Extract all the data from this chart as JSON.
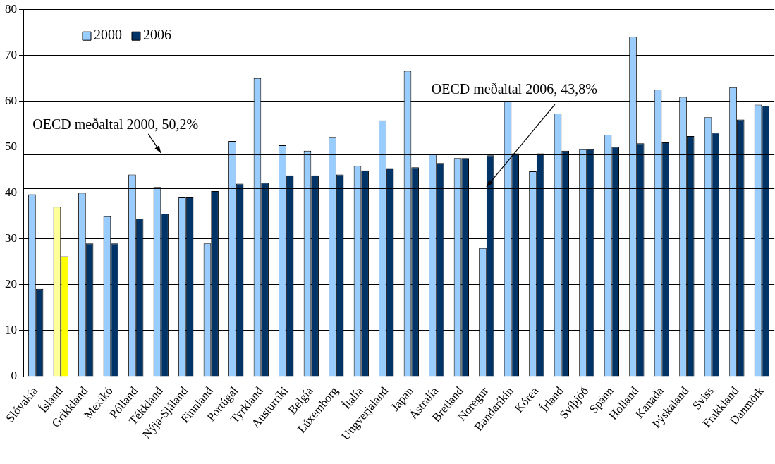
{
  "chart_data": {
    "type": "bar",
    "categories": [
      "Slóvakía",
      "Ísland",
      "Grikkland",
      "Mexíkó",
      "Pólland",
      "Tékkland",
      "Nýja-Sjáland",
      "Finnland",
      "Portúgal",
      "Tyrkland",
      "Austurríki",
      "Belgía",
      "Lúxemborg",
      "Ítalía",
      "Ungverjaland",
      "Japan",
      "Ástralía",
      "Bretland",
      "Noregur",
      "Bandaríkin",
      "Kórea",
      "Írland",
      "Svíþjóð",
      "Spánn",
      "Holland",
      "Kanada",
      "Þýskaland",
      "Sviss",
      "Frakkland",
      "Danmörk"
    ],
    "series": [
      {
        "name": "2000",
        "color": "#99ccff",
        "colors": [
          "#99ccff",
          "#ffff99",
          "#99ccff",
          "#99ccff",
          "#99ccff",
          "#99ccff",
          "#99ccff",
          "#99ccff",
          "#99ccff",
          "#99ccff",
          "#99ccff",
          "#99ccff",
          "#99ccff",
          "#99ccff",
          "#99ccff",
          "#99ccff",
          "#99ccff",
          "#99ccff",
          "#99ccff",
          "#99ccff",
          "#99ccff",
          "#99ccff",
          "#99ccff",
          "#99ccff",
          "#99ccff",
          "#99ccff",
          "#99ccff",
          "#99ccff",
          "#99ccff",
          "#99ccff"
        ],
        "values": [
          39.7,
          37.0,
          40.0,
          34.9,
          44.0,
          41.3,
          39.0,
          29.0,
          51.3,
          65.0,
          50.4,
          49.2,
          52.2,
          45.9,
          55.8,
          66.6,
          48.4,
          47.6,
          28.0,
          60.0,
          44.7,
          57.3,
          49.5,
          52.7,
          74.0,
          62.5,
          60.9,
          56.5,
          63.0,
          59.2
        ]
      },
      {
        "name": "2006",
        "color": "#003366",
        "colors": [
          "#003366",
          "#ffff00",
          "#003366",
          "#003366",
          "#003366",
          "#003366",
          "#003366",
          "#003366",
          "#003366",
          "#003366",
          "#003366",
          "#003366",
          "#003366",
          "#003366",
          "#003366",
          "#003366",
          "#003366",
          "#003366",
          "#003366",
          "#003366",
          "#003366",
          "#003366",
          "#003366",
          "#003366",
          "#003366",
          "#003366",
          "#003366",
          "#003366",
          "#003366",
          "#003366"
        ],
        "values": [
          19.1,
          26.2,
          29.0,
          29.0,
          34.4,
          35.5,
          39.0,
          40.4,
          42.0,
          42.2,
          43.8,
          43.8,
          44.0,
          44.9,
          45.4,
          45.6,
          46.5,
          47.6,
          48.2,
          48.6,
          48.6,
          49.2,
          49.5,
          50.0,
          50.8,
          51.0,
          52.4,
          53.1,
          56.0,
          59.0
        ]
      }
    ],
    "ylim": [
      0,
      80
    ],
    "yticks": [
      0,
      10,
      20,
      30,
      40,
      50,
      60,
      70,
      80
    ],
    "grid": "y",
    "legend": "top left",
    "ref_lines": [
      {
        "axis": "y",
        "value": 48.4,
        "color": "#000000"
      },
      {
        "axis": "y",
        "value": 41.0,
        "color": "#000000"
      }
    ],
    "annotations": [
      {
        "text": "OECD meðaltal 2000, 50,2%",
        "x": "Tékkland",
        "y": 48.4
      },
      {
        "text": "OECD meðaltal 2006, 43,8%",
        "x": "Noregur",
        "y": 41.0
      }
    ]
  }
}
